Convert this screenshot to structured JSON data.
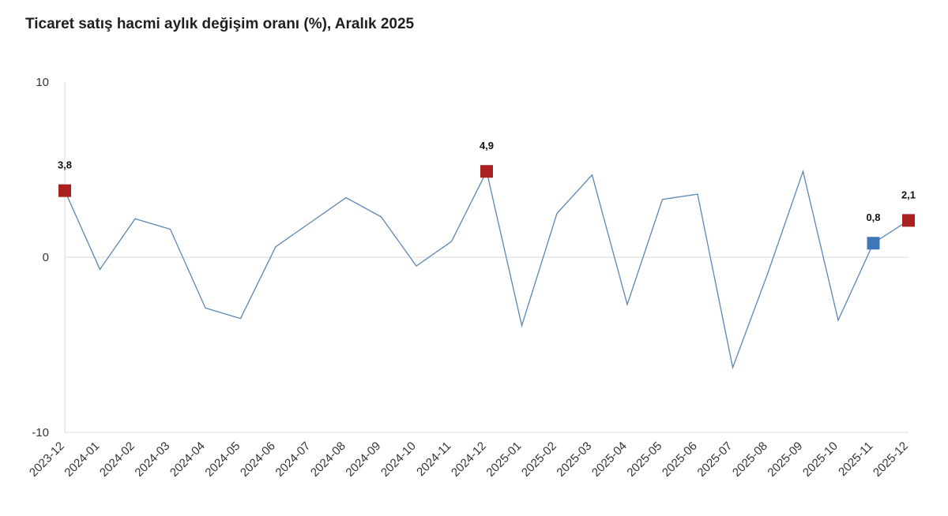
{
  "chart_data": {
    "type": "line",
    "title": "Ticaret satış hacmi aylık değişim oranı (%), Aralık 2025",
    "xlabel": "",
    "ylabel": "",
    "ylim": [
      -10,
      10
    ],
    "yticks": [
      "10",
      "0",
      "-10"
    ],
    "grid": "zero-line",
    "legend": "none",
    "categories": [
      "2023-12",
      "2024-01",
      "2024-02",
      "2024-03",
      "2024-04",
      "2024-05",
      "2024-06",
      "2024-07",
      "2024-08",
      "2024-09",
      "2024-10",
      "2024-11",
      "2024-12",
      "2025-01",
      "2025-02",
      "2025-03",
      "2025-04",
      "2025-05",
      "2025-06",
      "2025-07",
      "2025-08",
      "2025-09",
      "2025-10",
      "2025-11",
      "2025-12"
    ],
    "series": [
      {
        "values": [
          3.8,
          -0.7,
          2.2,
          1.6,
          -2.9,
          -3.5,
          0.6,
          2.0,
          3.4,
          2.3,
          -0.5,
          0.9,
          4.9,
          -3.9,
          2.5,
          4.7,
          -2.7,
          3.3,
          3.6,
          -6.3,
          -0.9,
          4.9,
          -3.6,
          0.8,
          2.1
        ],
        "color": "#5b86b2"
      }
    ],
    "highlights": [
      {
        "index": 0,
        "label": "3,8",
        "color": "#a8201f"
      },
      {
        "index": 12,
        "label": "4,9",
        "color": "#a8201f"
      },
      {
        "index": 23,
        "label": "0,8",
        "color": "#3f76b8"
      },
      {
        "index": 24,
        "label": "2,1",
        "color": "#a8201f"
      }
    ]
  }
}
